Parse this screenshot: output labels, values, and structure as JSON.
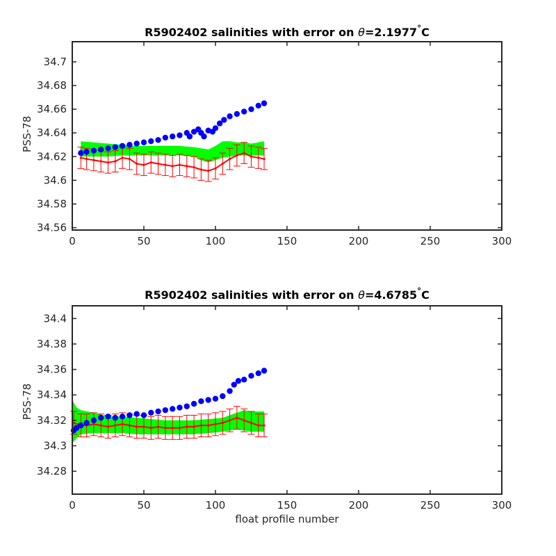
{
  "figure": {
    "xlabel": "float profile number"
  },
  "colors": {
    "series_blue": "#0000ff",
    "band_green": "#00ff00",
    "error_red": "#ff0000",
    "axes": "#262626"
  },
  "chart_data": [
    {
      "type": "scatter",
      "title_prefix": "R5902402 salinities with error on ",
      "title_symbol": "θ",
      "title_value": "=2.1977",
      "title_degree": "°",
      "title_unit": "C",
      "ylabel": "PSS-78",
      "xlim": [
        0,
        300
      ],
      "ylim": [
        34.558,
        34.717
      ],
      "xticks": [
        "0",
        "50",
        "100",
        "150",
        "200",
        "250",
        "300"
      ],
      "yticks": [
        "34.56",
        "34.58",
        "34.6",
        "34.62",
        "34.64",
        "34.66",
        "34.68",
        "34.7"
      ],
      "grid": false,
      "series": [
        {
          "role": "float salinity",
          "x": [
            6,
            10,
            15,
            20,
            25,
            30,
            35,
            40,
            45,
            50,
            55,
            60,
            65,
            70,
            75,
            80,
            82,
            85,
            88,
            90,
            92,
            95,
            98,
            100,
            103,
            106,
            110,
            115,
            120,
            125,
            130,
            134
          ],
          "y": [
            34.623,
            34.624,
            34.625,
            34.626,
            34.627,
            34.628,
            34.629,
            34.63,
            34.631,
            34.632,
            34.633,
            34.634,
            34.636,
            34.637,
            34.638,
            34.64,
            34.637,
            34.641,
            34.643,
            34.64,
            34.637,
            34.642,
            34.641,
            34.644,
            34.648,
            34.651,
            34.654,
            34.656,
            34.658,
            34.66,
            34.663,
            34.665
          ]
        },
        {
          "role": "mapped salinity with error",
          "x": [
            6,
            10,
            15,
            20,
            25,
            30,
            35,
            40,
            45,
            50,
            55,
            60,
            65,
            70,
            75,
            80,
            85,
            90,
            95,
            100,
            105,
            110,
            115,
            120,
            125,
            130,
            134
          ],
          "y": [
            34.619,
            34.618,
            34.617,
            34.616,
            34.615,
            34.616,
            34.619,
            34.618,
            34.614,
            34.613,
            34.615,
            34.614,
            34.613,
            34.612,
            34.613,
            34.612,
            34.611,
            34.609,
            34.608,
            34.61,
            34.614,
            34.618,
            34.621,
            34.623,
            34.62,
            34.619,
            34.618
          ],
          "error": [
            0.009,
            0.009,
            0.009,
            0.009,
            0.009,
            0.009,
            0.009,
            0.009,
            0.009,
            0.009,
            0.009,
            0.009,
            0.009,
            0.009,
            0.009,
            0.009,
            0.009,
            0.009,
            0.009,
            0.009,
            0.009,
            0.009,
            0.009,
            0.009,
            0.009,
            0.009,
            0.009
          ]
        },
        {
          "role": "uncertainty band",
          "x": [
            6,
            15,
            25,
            35,
            45,
            55,
            65,
            75,
            85,
            90,
            95,
            100,
            105,
            110,
            115,
            120,
            125,
            130,
            134
          ],
          "upper": [
            34.633,
            34.632,
            34.631,
            34.63,
            34.629,
            34.629,
            34.629,
            34.629,
            34.628,
            34.627,
            34.626,
            34.629,
            34.633,
            34.633,
            34.632,
            34.632,
            34.631,
            34.632,
            34.633
          ],
          "lower": [
            34.62,
            34.62,
            34.62,
            34.621,
            34.621,
            34.621,
            34.621,
            34.621,
            34.62,
            34.617,
            34.615,
            34.617,
            34.619,
            34.62,
            34.621,
            34.621,
            34.621,
            34.621,
            34.621
          ]
        }
      ]
    },
    {
      "type": "scatter",
      "title_prefix": "R5902402 salinities with error on ",
      "title_symbol": "θ",
      "title_value": "=4.6785",
      "title_degree": "°",
      "title_unit": "C",
      "ylabel": "PSS-78",
      "xlim": [
        0,
        300
      ],
      "ylim": [
        34.262,
        34.41
      ],
      "xticks": [
        "0",
        "50",
        "100",
        "150",
        "200",
        "250",
        "300"
      ],
      "yticks": [
        "34.28",
        "34.3",
        "34.32",
        "34.34",
        "34.36",
        "34.38",
        "34.4"
      ],
      "grid": false,
      "series": [
        {
          "role": "float salinity",
          "x": [
            1,
            3,
            6,
            10,
            15,
            20,
            25,
            30,
            35,
            40,
            45,
            50,
            55,
            60,
            65,
            70,
            75,
            80,
            85,
            90,
            95,
            100,
            105,
            110,
            113,
            116,
            120,
            125,
            130,
            134
          ],
          "y": [
            34.312,
            34.314,
            34.316,
            34.318,
            34.32,
            34.322,
            34.323,
            34.322,
            34.323,
            34.324,
            34.325,
            34.324,
            34.326,
            34.327,
            34.328,
            34.329,
            34.33,
            34.331,
            34.333,
            34.335,
            34.336,
            34.337,
            34.339,
            34.343,
            34.348,
            34.351,
            34.352,
            34.355,
            34.357,
            34.359
          ]
        },
        {
          "role": "mapped salinity with error",
          "x": [
            1,
            6,
            10,
            15,
            20,
            25,
            30,
            35,
            40,
            45,
            50,
            55,
            60,
            65,
            70,
            75,
            80,
            85,
            90,
            95,
            100,
            105,
            110,
            115,
            120,
            125,
            130,
            134
          ],
          "y": [
            34.318,
            34.316,
            34.316,
            34.317,
            34.316,
            34.315,
            34.316,
            34.317,
            34.316,
            34.315,
            34.315,
            34.314,
            34.315,
            34.314,
            34.314,
            34.314,
            34.315,
            34.315,
            34.316,
            34.316,
            34.317,
            34.318,
            34.32,
            34.322,
            34.32,
            34.318,
            34.316,
            34.316
          ],
          "error": [
            0.009,
            0.009,
            0.009,
            0.009,
            0.009,
            0.009,
            0.009,
            0.009,
            0.009,
            0.009,
            0.009,
            0.009,
            0.009,
            0.009,
            0.009,
            0.009,
            0.009,
            0.009,
            0.009,
            0.009,
            0.009,
            0.009,
            0.009,
            0.009,
            0.009,
            0.009,
            0.009,
            0.009
          ]
        },
        {
          "role": "uncertainty band",
          "x": [
            0,
            3,
            6,
            15,
            25,
            35,
            45,
            55,
            65,
            75,
            85,
            95,
            105,
            110,
            115,
            120,
            125,
            130,
            134
          ],
          "upper": [
            34.336,
            34.33,
            34.328,
            34.326,
            34.323,
            34.323,
            34.322,
            34.321,
            34.32,
            34.32,
            34.32,
            34.321,
            34.322,
            34.324,
            34.326,
            34.328,
            34.327,
            34.327,
            34.327
          ],
          "lower": [
            34.302,
            34.306,
            34.309,
            34.31,
            34.31,
            34.31,
            34.309,
            34.309,
            34.309,
            34.309,
            34.309,
            34.31,
            34.311,
            34.312,
            34.313,
            34.312,
            34.311,
            34.311,
            34.311
          ]
        }
      ]
    }
  ]
}
